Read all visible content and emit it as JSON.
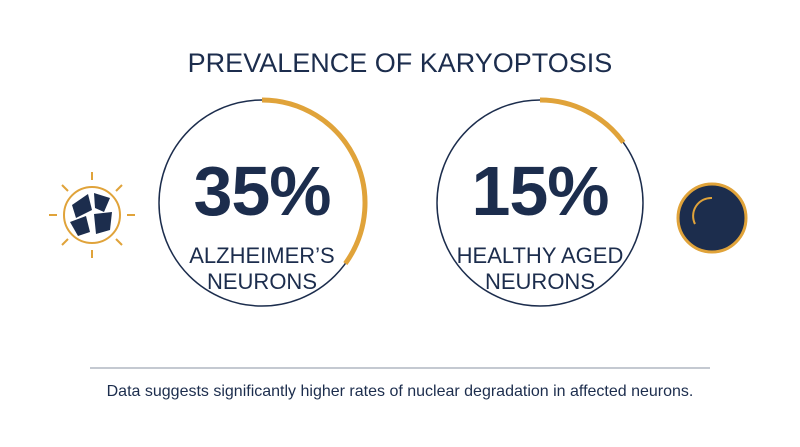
{
  "chart_data": {
    "type": "gauge",
    "title": "PREVALENCE OF KARYOPTOSIS",
    "categories": [
      "ALZHEIMER’S NEURONS",
      "HEALTHY AGED NEURONS"
    ],
    "values": [
      35,
      15
    ],
    "value_labels": [
      "35%",
      "15%"
    ],
    "color": "#e0a33a",
    "footnote": "Data suggests significantly higher rates of nuclear degradation in affected neurons."
  }
}
